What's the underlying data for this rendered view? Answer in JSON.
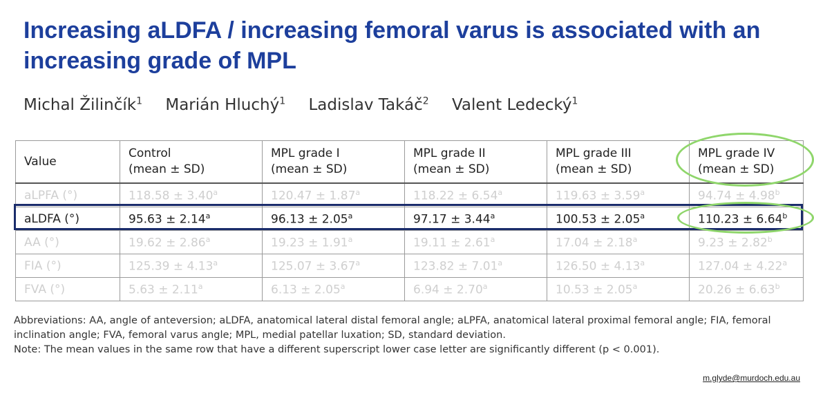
{
  "slide": {
    "title": "Increasing aLDFA / increasing femoral varus is associated with an increasing grade of MPL",
    "email": "m.glyde@murdoch.edu.au"
  },
  "authors": [
    {
      "name": "Michal Žilinčík",
      "affil": "1"
    },
    {
      "name": "Marián Hluchý",
      "affil": "1"
    },
    {
      "name": "Ladislav Takáč",
      "affil": "2"
    },
    {
      "name": "Valent Ledecký",
      "affil": "1"
    }
  ],
  "table": {
    "headers": [
      {
        "line1": "Value",
        "line2": ""
      },
      {
        "line1": "Control",
        "line2": "(mean ± SD)"
      },
      {
        "line1": "MPL grade I",
        "line2": "(mean ± SD)"
      },
      {
        "line1": "MPL grade II",
        "line2": "(mean ± SD)"
      },
      {
        "line1": "MPL grade III",
        "line2": "(mean ± SD)"
      },
      {
        "line1": "MPL grade IV",
        "line2": "(mean ± SD)"
      }
    ],
    "rows": [
      {
        "label": "aLPFA (°)",
        "faded": true,
        "cells": [
          {
            "v": "118.58 ± 3.40",
            "s": "a"
          },
          {
            "v": "120.47 ± 1.87",
            "s": "a"
          },
          {
            "v": "118.22 ± 6.54",
            "s": "a"
          },
          {
            "v": "119.63 ± 3.59",
            "s": "a"
          },
          {
            "v": "94.74 ± 4.98",
            "s": "b"
          }
        ]
      },
      {
        "label": "aLDFA (°)",
        "faded": false,
        "cells": [
          {
            "v": "95.63 ± 2.14",
            "s": "a"
          },
          {
            "v": "96.13 ± 2.05",
            "s": "a"
          },
          {
            "v": "97.17 ± 3.44",
            "s": "a"
          },
          {
            "v": "100.53 ± 2.05",
            "s": "a"
          },
          {
            "v": "110.23 ± 6.64",
            "s": "b"
          }
        ]
      },
      {
        "label": "AA (°)",
        "faded": true,
        "cells": [
          {
            "v": "19.62 ± 2.86",
            "s": "a"
          },
          {
            "v": "19.23 ± 1.91",
            "s": "a"
          },
          {
            "v": "19.11 ± 2.61",
            "s": "a"
          },
          {
            "v": "17.04 ± 2.18",
            "s": "a"
          },
          {
            "v": "9.23 ± 2.82",
            "s": "b"
          }
        ]
      },
      {
        "label": "FIA (°)",
        "faded": true,
        "cells": [
          {
            "v": "125.39 ± 4.13",
            "s": "a"
          },
          {
            "v": "125.07 ± 3.67",
            "s": "a"
          },
          {
            "v": "123.82 ± 7.01",
            "s": "a"
          },
          {
            "v": "126.50 ± 4.13",
            "s": "a"
          },
          {
            "v": "127.04 ± 4.22",
            "s": "a"
          }
        ]
      },
      {
        "label": "FVA (°)",
        "faded": true,
        "cells": [
          {
            "v": "5.63 ± 2.11",
            "s": "a"
          },
          {
            "v": "6.13 ± 2.05",
            "s": "a"
          },
          {
            "v": "6.94 ± 2.70",
            "s": "a"
          },
          {
            "v": "10.53 ± 2.05",
            "s": "a"
          },
          {
            "v": "20.26 ± 6.63",
            "s": "b"
          }
        ]
      }
    ]
  },
  "footnotes": {
    "abbreviations": "Abbreviations: AA, angle of anteversion; aLDFA, anatomical lateral distal femoral angle; aLPFA, anatomical lateral proximal femoral angle; FIA, femoral inclination angle; FVA, femoral varus angle; MPL, medial patellar luxation; SD, standard deviation.",
    "note": "Note: The mean values in the same row that have a different superscript lower case letter are significantly different (p < 0.001)."
  },
  "colors": {
    "title": "#1d3f9c",
    "row_highlight": "#1a2c6b",
    "oval_highlight": "#8fd66b"
  }
}
